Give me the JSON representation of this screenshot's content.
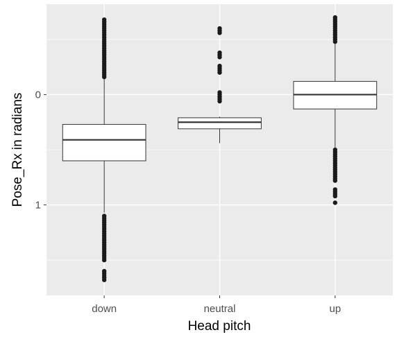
{
  "chart_data": {
    "type": "boxplot",
    "title": "",
    "xlabel": "Head pitch",
    "ylabel": "Pose_Rx in radians",
    "y_axis_reversed": true,
    "ylim": [
      1.82,
      -0.82
    ],
    "y_ticks": [
      0,
      1
    ],
    "y_tick_labels": [
      "0",
      "1"
    ],
    "grid": true,
    "legend": "none",
    "categories": [
      "down",
      "neutral",
      "up"
    ],
    "boxes": [
      {
        "name": "down",
        "q1": 0.27,
        "median": 0.41,
        "q3": 0.6,
        "whisker_low": -0.65,
        "whisker_high": 1.07,
        "outliers": [
          -0.68,
          -0.66,
          -0.64,
          -0.62,
          -0.6,
          -0.58,
          -0.56,
          -0.54,
          -0.52,
          -0.5,
          -0.48,
          -0.46,
          -0.44,
          -0.42,
          -0.4,
          -0.38,
          -0.36,
          -0.34,
          -0.32,
          -0.3,
          -0.28,
          -0.26,
          -0.24,
          -0.22,
          -0.2,
          -0.18,
          -0.16,
          1.1,
          1.12,
          1.14,
          1.16,
          1.18,
          1.2,
          1.22,
          1.24,
          1.26,
          1.28,
          1.3,
          1.32,
          1.34,
          1.36,
          1.38,
          1.4,
          1.42,
          1.44,
          1.46,
          1.48,
          1.5,
          1.6,
          1.62,
          1.64,
          1.66,
          1.68
        ]
      },
      {
        "name": "neutral",
        "q1": 0.21,
        "median": 0.25,
        "q3": 0.31,
        "whisker_low": 0.2,
        "whisker_high": 0.44,
        "outliers": [
          -0.6,
          -0.58,
          -0.56,
          -0.38,
          -0.36,
          -0.34,
          -0.26,
          -0.24,
          -0.22,
          -0.2,
          -0.02,
          0,
          0.02,
          0.04,
          0.06
        ]
      },
      {
        "name": "up",
        "q1": -0.12,
        "median": 0.0,
        "q3": 0.13,
        "whisker_low": -0.68,
        "whisker_high": 0.48,
        "outliers": [
          -0.7,
          -0.68,
          -0.66,
          -0.64,
          -0.62,
          -0.6,
          -0.58,
          -0.56,
          -0.54,
          -0.52,
          -0.5,
          -0.48,
          0.5,
          0.52,
          0.54,
          0.56,
          0.58,
          0.6,
          0.62,
          0.64,
          0.66,
          0.68,
          0.7,
          0.72,
          0.74,
          0.76,
          0.78,
          0.86,
          0.88,
          0.9,
          0.92,
          0.98
        ]
      }
    ]
  }
}
